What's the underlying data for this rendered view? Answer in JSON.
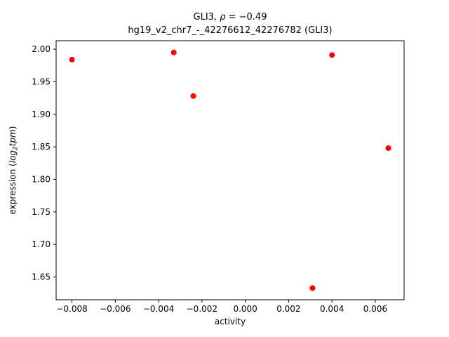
{
  "figure": {
    "title1": {
      "prefix": "GLI3, ",
      "rho": "ρ",
      "rest": " = −0.49"
    },
    "title2": "hg19_v2_chr7_-_42276612_42276782 (GLI3)",
    "xlabel": "activity",
    "ylabel": {
      "prefix": "expression (",
      "log": "log",
      "sub": "2",
      "var": "tpm",
      "suffix": ")"
    }
  },
  "chart_data": {
    "type": "scatter",
    "title": "GLI3, ρ = −0.49",
    "subtitle": "hg19_v2_chr7_-_42276612_42276782 (GLI3)",
    "xlabel": "activity",
    "ylabel": "expression (log2 tpm)",
    "marker_color": "#ff0000",
    "marker_radius_px": 4,
    "grid": false,
    "legend": null,
    "xlim": [
      -0.00873,
      0.00733
    ],
    "ylim": [
      1.615,
      2.013
    ],
    "xticks": [
      -0.008,
      -0.006,
      -0.004,
      -0.002,
      0.0,
      0.002,
      0.004,
      0.006
    ],
    "xtick_labels": [
      "−0.008",
      "−0.006",
      "−0.004",
      "−0.002",
      "0.000",
      "0.002",
      "0.004",
      "0.006"
    ],
    "yticks": [
      1.65,
      1.7,
      1.75,
      1.8,
      1.85,
      1.9,
      1.95,
      2.0
    ],
    "ytick_labels": [
      "1.65",
      "1.70",
      "1.75",
      "1.80",
      "1.85",
      "1.90",
      "1.95",
      "2.00"
    ],
    "points": [
      {
        "x": -0.008,
        "y": 1.984
      },
      {
        "x": -0.0033,
        "y": 1.995
      },
      {
        "x": -0.0024,
        "y": 1.928
      },
      {
        "x": 0.0031,
        "y": 1.633
      },
      {
        "x": 0.004,
        "y": 1.991
      },
      {
        "x": 0.0066,
        "y": 1.848
      }
    ]
  }
}
